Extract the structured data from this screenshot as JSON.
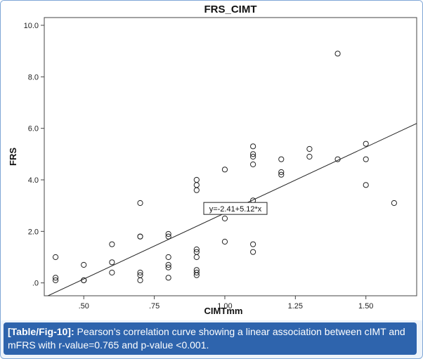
{
  "chart_data": {
    "type": "scatter",
    "title": "FRS_CIMT",
    "xlabel": "CIMTmm",
    "ylabel": "FRS",
    "xlim": [
      0.36,
      1.68
    ],
    "ylim": [
      -0.5,
      10.3
    ],
    "xticks": [
      0.5,
      0.75,
      1.0,
      1.25,
      1.5
    ],
    "xtick_labels": [
      ".50",
      ".75",
      "1.00",
      "1.25",
      "1.50"
    ],
    "yticks": [
      0.0,
      2.0,
      4.0,
      6.0,
      8.0,
      10.0
    ],
    "ytick_labels": [
      ".0",
      "2.0",
      "4.0",
      "6.0",
      "8.0",
      "10.0"
    ],
    "grid": false,
    "points": [
      {
        "x": 0.4,
        "y": 1.0
      },
      {
        "x": 0.4,
        "y": 0.2
      },
      {
        "x": 0.4,
        "y": 0.1
      },
      {
        "x": 0.5,
        "y": 0.7
      },
      {
        "x": 0.5,
        "y": 0.1
      },
      {
        "x": 0.5,
        "y": 0.1
      },
      {
        "x": 0.6,
        "y": 1.5
      },
      {
        "x": 0.6,
        "y": 0.8
      },
      {
        "x": 0.6,
        "y": 0.4
      },
      {
        "x": 0.7,
        "y": 3.1
      },
      {
        "x": 0.7,
        "y": 1.8
      },
      {
        "x": 0.7,
        "y": 1.8
      },
      {
        "x": 0.7,
        "y": 0.4
      },
      {
        "x": 0.7,
        "y": 0.3
      },
      {
        "x": 0.7,
        "y": 0.1
      },
      {
        "x": 0.8,
        "y": 1.9
      },
      {
        "x": 0.8,
        "y": 1.8
      },
      {
        "x": 0.8,
        "y": 1.0
      },
      {
        "x": 0.8,
        "y": 0.7
      },
      {
        "x": 0.8,
        "y": 0.6
      },
      {
        "x": 0.8,
        "y": 0.2
      },
      {
        "x": 0.9,
        "y": 4.0
      },
      {
        "x": 0.9,
        "y": 3.8
      },
      {
        "x": 0.9,
        "y": 3.6
      },
      {
        "x": 0.9,
        "y": 1.3
      },
      {
        "x": 0.9,
        "y": 1.2
      },
      {
        "x": 0.9,
        "y": 1.0
      },
      {
        "x": 0.9,
        "y": 0.5
      },
      {
        "x": 0.9,
        "y": 0.4
      },
      {
        "x": 0.9,
        "y": 0.3
      },
      {
        "x": 1.0,
        "y": 4.4
      },
      {
        "x": 1.0,
        "y": 2.5
      },
      {
        "x": 1.0,
        "y": 1.6
      },
      {
        "x": 1.1,
        "y": 5.3
      },
      {
        "x": 1.1,
        "y": 5.0
      },
      {
        "x": 1.1,
        "y": 4.9
      },
      {
        "x": 1.1,
        "y": 4.6
      },
      {
        "x": 1.1,
        "y": 3.2
      },
      {
        "x": 1.1,
        "y": 1.5
      },
      {
        "x": 1.1,
        "y": 1.2
      },
      {
        "x": 1.2,
        "y": 4.8
      },
      {
        "x": 1.2,
        "y": 4.3
      },
      {
        "x": 1.2,
        "y": 4.2
      },
      {
        "x": 1.3,
        "y": 5.2
      },
      {
        "x": 1.3,
        "y": 4.9
      },
      {
        "x": 1.4,
        "y": 8.9
      },
      {
        "x": 1.4,
        "y": 4.8
      },
      {
        "x": 1.5,
        "y": 5.4
      },
      {
        "x": 1.5,
        "y": 4.8
      },
      {
        "x": 1.5,
        "y": 3.8
      },
      {
        "x": 1.6,
        "y": 3.1
      }
    ],
    "fit_line": {
      "intercept": -2.41,
      "slope": 5.12,
      "label": "y=-2.41+5.12*x",
      "label_at": {
        "x": 1.02,
        "y": 2.85
      }
    }
  },
  "caption": {
    "label": "[Table/Fig-10]:",
    "text": " Pearson’s correlation curve showing a linear association between cIMT and mFRS with r-value=0.765 and p-value <0.001."
  }
}
